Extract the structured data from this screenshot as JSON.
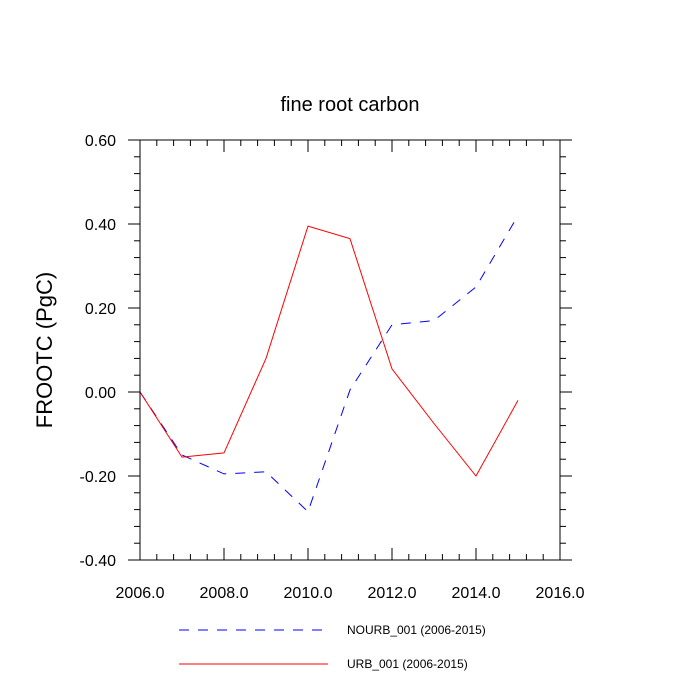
{
  "chart_data": {
    "type": "line",
    "title": "fine root carbon",
    "xlabel": "",
    "ylabel": "FROOTC  (PgC)",
    "xlim": [
      2006.0,
      2016.0
    ],
    "ylim": [
      -0.4,
      0.6
    ],
    "x_ticks": [
      2006.0,
      2008.0,
      2010.0,
      2012.0,
      2014.0,
      2016.0
    ],
    "x_tick_labels": [
      "2006.0",
      "2008.0",
      "2010.0",
      "2012.0",
      "2014.0",
      "2016.0"
    ],
    "y_ticks": [
      -0.4,
      -0.2,
      0.0,
      0.2,
      0.4,
      0.6
    ],
    "y_tick_labels": [
      "-0.40",
      "-0.20",
      "0.00",
      "0.20",
      "0.40",
      "0.60"
    ],
    "x_minor_step": 0.4,
    "y_minor_step": 0.04,
    "grid": false,
    "legend_position": "bottom",
    "series": [
      {
        "name": "NOURB_001 (2006-2015)",
        "color": "#0000ff",
        "style": "dashed",
        "x": [
          2006,
          2007,
          2008,
          2009,
          2010,
          2011,
          2012,
          2013,
          2014,
          2015
        ],
        "values": [
          0.0,
          -0.15,
          -0.195,
          -0.19,
          -0.285,
          0.005,
          0.16,
          0.17,
          0.25,
          0.42
        ]
      },
      {
        "name": "URB_001 (2006-2015)",
        "color": "#ff0000",
        "style": "solid",
        "x": [
          2006,
          2007,
          2008,
          2009,
          2010,
          2011,
          2012,
          2013,
          2014,
          2015
        ],
        "values": [
          0.0,
          -0.155,
          -0.145,
          0.08,
          0.395,
          0.365,
          0.055,
          -0.075,
          -0.2,
          -0.02
        ]
      }
    ]
  }
}
